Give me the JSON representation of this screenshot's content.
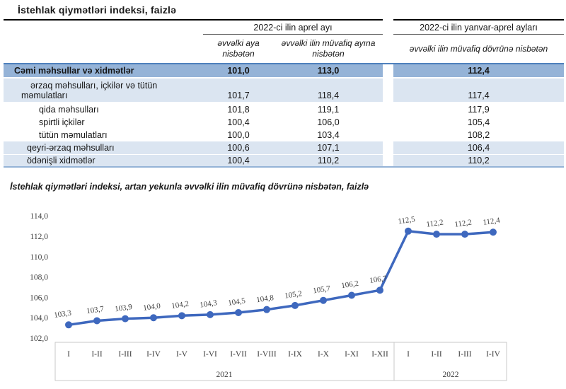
{
  "doc_title": "İstehlak qiymətləri indeksi, faizlə",
  "table": {
    "group_headers": [
      "2022-ci ilin aprel ayı",
      "2022-ci ilin yanvar-aprel ayları"
    ],
    "sub_headers": [
      "əvvəlki aya nisbətən",
      "əvvəlki ilin müvafiq ayına nisbətən",
      "əvvəlki ilin müvafiq dövrünə nisbətən"
    ],
    "rows": [
      {
        "label": "Cəmi məhsullar və xidmətlər",
        "values": [
          "101,0",
          "113,0",
          "112,4"
        ]
      },
      {
        "label": "ərzaq məhsulları, içkilər və tütün məmulatları",
        "values": [
          "101,7",
          "118,4",
          "117,4"
        ]
      },
      {
        "label": "qida məhsulları",
        "values": [
          "101,8",
          "119,1",
          "117,9"
        ]
      },
      {
        "label": "spirtli içkilər",
        "values": [
          "100,4",
          "106,0",
          "105,4"
        ]
      },
      {
        "label": "tütün məmulatları",
        "values": [
          "100,0",
          "103,4",
          "108,2"
        ]
      },
      {
        "label": "qeyri-ərzaq məhsulları",
        "values": [
          "100,6",
          "107,1",
          "106,4"
        ]
      },
      {
        "label": "ödənişli xidmətlər",
        "values": [
          "100,4",
          "110,2",
          "110,2"
        ]
      }
    ]
  },
  "chart_title": "İstehlak qiymətləri indeksi, artan yekunla əvvəlki ilin müvafiq dövrünə nisbətən, faizlə",
  "chart_data": {
    "type": "line",
    "x": [
      "I",
      "I-II",
      "I-III",
      "I-IV",
      "I-V",
      "I-VI",
      "I-VII",
      "I-VIII",
      "I-IX",
      "I-X",
      "I-XI",
      "I-XII",
      "I",
      "I-II",
      "I-III",
      "I-IV"
    ],
    "year_groups": [
      {
        "label": "2021",
        "count": 12
      },
      {
        "label": "2022",
        "count": 4
      }
    ],
    "values": [
      103.3,
      103.7,
      103.9,
      104.0,
      104.2,
      104.3,
      104.5,
      104.8,
      105.2,
      105.7,
      106.2,
      106.7,
      112.5,
      112.2,
      112.2,
      112.4
    ],
    "point_labels": [
      "103,3",
      "103,7",
      "103,9",
      "104,0",
      "104,2",
      "104,3",
      "104,5",
      "104,8",
      "105,2",
      "105,7",
      "106,2",
      "106,7",
      "112,5",
      "112,2",
      "112,2",
      "112,4"
    ],
    "ytick_labels": [
      "114,0",
      "112,0",
      "110,0",
      "108,0",
      "106,0",
      "104,0",
      "102,0"
    ],
    "ytick_values": [
      114,
      112,
      110,
      108,
      106,
      104,
      102
    ],
    "ylim": [
      102,
      114
    ],
    "grid": false,
    "legend": "none",
    "line_color": "#3E68BE",
    "marker_color": "#3E68BE",
    "axis_color": "#C9C9C9",
    "label_color": "#404040"
  },
  "colors": {
    "total_row_bg": "#95B3D7",
    "shaded_row_bg": "#DBE5F1",
    "total_row_top_border": "#4F81BD",
    "table_bottom_border": "#95B3D7",
    "title_rule": "#000000"
  }
}
